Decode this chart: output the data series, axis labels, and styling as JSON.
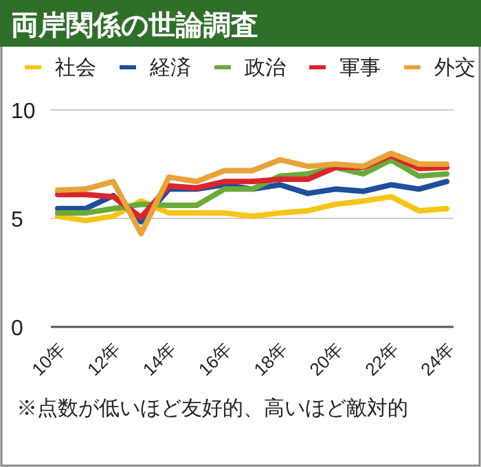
{
  "chart_data": {
    "type": "line",
    "title": "両岸関係の世論調査",
    "categories": [
      "10年",
      null,
      "12年",
      null,
      "14年",
      null,
      "16年",
      null,
      "18年",
      null,
      "20年",
      null,
      "22年",
      null,
      "24年"
    ],
    "series": [
      {
        "name": "社会",
        "color": "#f5c518",
        "values": [
          5.1,
          4.9,
          5.1,
          5.8,
          5.25,
          5.25,
          5.25,
          5.1,
          5.25,
          5.35,
          5.65,
          5.8,
          6.0,
          5.35,
          5.45
        ]
      },
      {
        "name": "経済",
        "color": "#1f4e9c",
        "values": [
          5.45,
          5.45,
          6.05,
          4.85,
          6.35,
          6.35,
          6.55,
          6.35,
          6.55,
          6.15,
          6.35,
          6.25,
          6.55,
          6.35,
          6.7
        ]
      },
      {
        "name": "政治",
        "color": "#6aaa3a",
        "values": [
          5.25,
          5.25,
          5.45,
          5.65,
          5.6,
          5.6,
          6.35,
          6.35,
          6.95,
          7.05,
          7.35,
          7.05,
          7.7,
          6.95,
          7.05
        ]
      },
      {
        "name": "軍事",
        "color": "#d9262b",
        "values": [
          6.1,
          6.1,
          6.0,
          5.05,
          6.5,
          6.4,
          6.7,
          6.7,
          6.8,
          6.8,
          7.35,
          7.35,
          7.9,
          7.3,
          7.35
        ]
      },
      {
        "name": "外交",
        "color": "#e8a33a",
        "values": [
          6.3,
          6.35,
          6.7,
          4.3,
          6.9,
          6.7,
          7.2,
          7.2,
          7.7,
          7.4,
          7.5,
          7.4,
          8.0,
          7.5,
          7.5
        ]
      }
    ],
    "ylim": [
      0,
      10
    ],
    "yticks": [
      0,
      5,
      10
    ],
    "grid": "y",
    "legend": "top",
    "annotations": [
      "※点数が低いほど友好的、高いほど敵対的"
    ]
  }
}
